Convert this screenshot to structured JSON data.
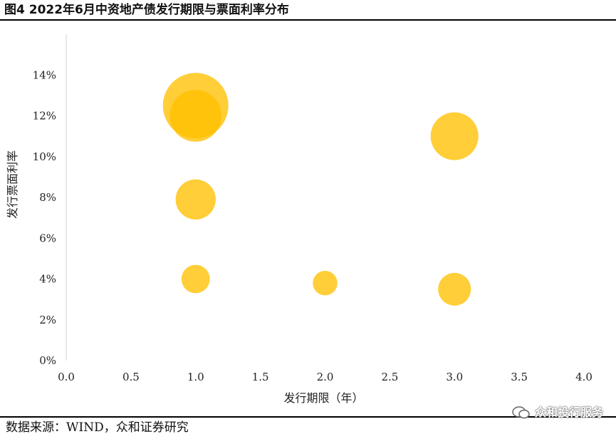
{
  "chart_data": {
    "type": "scatter",
    "title": "图4 2022年6月中资地产债发行期限与票面利率分布",
    "xlabel": "发行期限（年）",
    "ylabel": "发行票面利率",
    "xlim": [
      0,
      4
    ],
    "ylim": [
      0,
      0.16
    ],
    "x_ticks": [
      "0.0",
      "0.5",
      "1.0",
      "1.5",
      "2.0",
      "2.5",
      "3.0",
      "3.5",
      "4.0"
    ],
    "y_ticks": [
      "0%",
      "2%",
      "4%",
      "6%",
      "8%",
      "10%",
      "12%",
      "14%"
    ],
    "grid": false,
    "bubble_color": "#FFC000",
    "points": [
      {
        "x": 1.0,
        "y": 0.125,
        "size": 3.2
      },
      {
        "x": 1.0,
        "y": 0.12,
        "size": 2.0
      },
      {
        "x": 1.0,
        "y": 0.079,
        "size": 1.2
      },
      {
        "x": 1.0,
        "y": 0.04,
        "size": 0.6
      },
      {
        "x": 2.0,
        "y": 0.038,
        "size": 0.45
      },
      {
        "x": 3.0,
        "y": 0.11,
        "size": 1.7
      },
      {
        "x": 3.0,
        "y": 0.035,
        "size": 0.8
      }
    ]
  },
  "source": "数据来源：WIND，众和证券研究",
  "watermark": "众和投行服务"
}
